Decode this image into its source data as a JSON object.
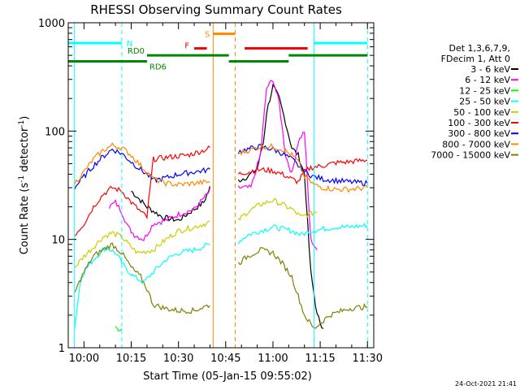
{
  "chart_data": {
    "type": "line",
    "title": "RHESSI Observing Summary Count Rates",
    "xlabel": "Start Time (05-Jan-15 09:55:02)",
    "ylabel": "Count Rate (s⁻¹ detector⁻¹)",
    "ylabel_parts": {
      "main": "Count Rate (s",
      "sup1": "-1",
      "mid": " detector",
      "sup2": "-1",
      "end": ")"
    },
    "yscale": "log",
    "ylim": [
      1,
      1000
    ],
    "xlim": [
      "09:55",
      "11:32"
    ],
    "x_ticks": [
      "10:00",
      "10:15",
      "10:30",
      "10:45",
      "11:00",
      "11:15",
      "11:30"
    ],
    "y_ticks": [
      "1",
      "10",
      "100",
      "1000"
    ],
    "legend_header": [
      "Det 1,3,6,7,9,",
      "FDecim 1, Att 0"
    ],
    "legend_placement": "right",
    "series": [
      {
        "name": "3 - 6 keV",
        "color": "#000000",
        "points": [
          [
            "10:15",
            28
          ],
          [
            "10:20",
            20
          ],
          [
            "10:25",
            16
          ],
          [
            "10:30",
            15
          ],
          [
            "10:35",
            19
          ],
          [
            "10:38",
            22
          ],
          [
            "10:40",
            30
          ],
          [
            "10:49",
            35
          ],
          [
            "10:52",
            38
          ],
          [
            "10:55",
            45
          ],
          [
            "10:57",
            80
          ],
          [
            "10:58",
            150
          ],
          [
            "11:00",
            260
          ],
          [
            "11:02",
            200
          ],
          [
            "11:04",
            120
          ],
          [
            "11:06",
            70
          ],
          [
            "11:08",
            60
          ],
          [
            "11:10",
            40
          ],
          [
            "11:12",
            5
          ],
          [
            "11:14",
            2
          ],
          [
            "11:16",
            1.5
          ]
        ]
      },
      {
        "name": "6 - 12 keV",
        "color": "#ff00ff",
        "points": [
          [
            "10:08",
            20
          ],
          [
            "10:10",
            22
          ],
          [
            "10:12",
            18
          ],
          [
            "10:14",
            13
          ],
          [
            "10:16",
            11
          ],
          [
            "10:19",
            10
          ],
          [
            "10:22",
            14
          ],
          [
            "10:26",
            15
          ],
          [
            "10:30",
            17
          ],
          [
            "10:35",
            19
          ],
          [
            "10:40",
            28
          ],
          [
            "10:49",
            30
          ],
          [
            "10:53",
            30
          ],
          [
            "10:56",
            60
          ],
          [
            "10:58",
            250
          ],
          [
            "11:00",
            300
          ],
          [
            "11:02",
            180
          ],
          [
            "11:04",
            60
          ],
          [
            "11:06",
            40
          ],
          [
            "11:08",
            80
          ],
          [
            "11:10",
            100
          ],
          [
            "11:12",
            10
          ],
          [
            "11:14",
            8
          ]
        ]
      },
      {
        "name": "12 - 25 keV",
        "color": "#00ff00",
        "points": [
          [
            "10:10",
            1.5
          ],
          [
            "10:12",
            1.5
          ]
        ]
      },
      {
        "name": "25 - 50 keV",
        "color": "#00ffff",
        "points": [
          [
            "09:57",
            1.5
          ],
          [
            "09:59",
            4.5
          ],
          [
            "10:01",
            5.5
          ],
          [
            "10:03",
            6.5
          ],
          [
            "10:05",
            7.5
          ],
          [
            "10:07",
            8.5
          ],
          [
            "10:10",
            7.5
          ],
          [
            "10:13",
            5.5
          ],
          [
            "10:16",
            4.5
          ],
          [
            "10:19",
            4.0
          ],
          [
            "10:22",
            5.0
          ],
          [
            "10:26",
            6.5
          ],
          [
            "10:30",
            7.5
          ],
          [
            "10:35",
            8.0
          ],
          [
            "10:40",
            9.0
          ],
          [
            "10:49",
            9.5
          ],
          [
            "10:52",
            11
          ],
          [
            "10:56",
            12
          ],
          [
            "11:00",
            13
          ],
          [
            "11:03",
            12.5
          ],
          [
            "11:06",
            12
          ],
          [
            "11:09",
            11
          ],
          [
            "11:12",
            12
          ],
          [
            "11:16",
            12.5
          ],
          [
            "11:20",
            13
          ],
          [
            "11:24",
            13
          ],
          [
            "11:30",
            13.5
          ]
        ]
      },
      {
        "name": "50 - 100 keV",
        "color": "#cccc00",
        "points": [
          [
            "09:57",
            5.5
          ],
          [
            "10:00",
            7.0
          ],
          [
            "10:03",
            8.5
          ],
          [
            "10:06",
            10.5
          ],
          [
            "10:09",
            11.5
          ],
          [
            "10:12",
            10.5
          ],
          [
            "10:15",
            8.5
          ],
          [
            "10:17",
            7.5
          ],
          [
            "10:22",
            8.0
          ],
          [
            "10:26",
            10
          ],
          [
            "10:30",
            12
          ],
          [
            "10:35",
            13
          ],
          [
            "10:40",
            14.5
          ],
          [
            "10:49",
            15
          ],
          [
            "10:52",
            18
          ],
          [
            "10:56",
            21
          ],
          [
            "11:00",
            23
          ],
          [
            "11:03",
            21
          ],
          [
            "11:06",
            19
          ],
          [
            "11:09",
            16
          ],
          [
            "11:11",
            17
          ],
          [
            "11:14",
            18
          ]
        ]
      },
      {
        "name": "100 - 300 keV",
        "color": "#ff0000",
        "points": [
          [
            "09:57",
            11
          ],
          [
            "10:00",
            14
          ],
          [
            "10:03",
            20
          ],
          [
            "10:06",
            26
          ],
          [
            "10:09",
            30
          ],
          [
            "10:12",
            28
          ],
          [
            "10:15",
            22
          ],
          [
            "10:18",
            18
          ],
          [
            "10:20",
            16
          ],
          [
            "10:22",
            55
          ],
          [
            "10:28",
            58
          ],
          [
            "10:33",
            60
          ],
          [
            "10:37",
            65
          ],
          [
            "10:40",
            70
          ],
          [
            "10:49",
            40
          ],
          [
            "10:52",
            42
          ],
          [
            "10:56",
            44
          ],
          [
            "11:00",
            43
          ],
          [
            "11:03",
            40
          ],
          [
            "11:06",
            36
          ],
          [
            "11:08",
            34
          ],
          [
            "11:10",
            42
          ],
          [
            "11:12",
            46
          ],
          [
            "11:16",
            48
          ],
          [
            "11:20",
            51
          ],
          [
            "11:24",
            52
          ],
          [
            "11:30",
            54
          ]
        ]
      },
      {
        "name": "300 - 800 keV",
        "color": "#0000ff",
        "points": [
          [
            "09:57",
            30
          ],
          [
            "10:00",
            38
          ],
          [
            "10:03",
            48
          ],
          [
            "10:06",
            58
          ],
          [
            "10:09",
            68
          ],
          [
            "10:12",
            62
          ],
          [
            "10:15",
            52
          ],
          [
            "10:18",
            44
          ],
          [
            "10:20",
            40
          ],
          [
            "10:22",
            35
          ],
          [
            "10:26",
            37
          ],
          [
            "10:30",
            40
          ],
          [
            "10:35",
            42
          ],
          [
            "10:40",
            44
          ],
          [
            "10:49",
            65
          ],
          [
            "10:52",
            68
          ],
          [
            "10:56",
            72
          ],
          [
            "11:00",
            68
          ],
          [
            "11:03",
            62
          ],
          [
            "11:06",
            55
          ],
          [
            "11:08",
            48
          ],
          [
            "11:10",
            42
          ],
          [
            "11:13",
            38
          ],
          [
            "11:16",
            36
          ],
          [
            "11:20",
            35
          ],
          [
            "11:24",
            34
          ],
          [
            "11:30",
            33
          ]
        ]
      },
      {
        "name": "800 - 7000 keV",
        "color": "#ff8800",
        "points": [
          [
            "09:57",
            33
          ],
          [
            "10:00",
            42
          ],
          [
            "10:03",
            55
          ],
          [
            "10:06",
            66
          ],
          [
            "10:09",
            74
          ],
          [
            "10:12",
            70
          ],
          [
            "10:15",
            60
          ],
          [
            "10:18",
            48
          ],
          [
            "10:20",
            42
          ],
          [
            "10:22",
            36
          ],
          [
            "10:26",
            33
          ],
          [
            "10:30",
            32
          ],
          [
            "10:35",
            33
          ],
          [
            "10:40",
            34
          ],
          [
            "10:49",
            62
          ],
          [
            "10:52",
            66
          ],
          [
            "10:56",
            72
          ],
          [
            "11:00",
            72
          ],
          [
            "11:03",
            68
          ],
          [
            "11:06",
            60
          ],
          [
            "11:08",
            52
          ],
          [
            "11:10",
            38
          ],
          [
            "11:13",
            32
          ],
          [
            "11:16",
            30
          ],
          [
            "11:20",
            29
          ],
          [
            "11:24",
            29
          ],
          [
            "11:30",
            30
          ]
        ]
      },
      {
        "name": "7000 - 15000 keV",
        "color": "#808000",
        "points": [
          [
            "09:57",
            3.2
          ],
          [
            "10:00",
            5.0
          ],
          [
            "10:03",
            7.0
          ],
          [
            "10:06",
            8.0
          ],
          [
            "10:09",
            9.0
          ],
          [
            "10:12",
            7.5
          ],
          [
            "10:15",
            5.5
          ],
          [
            "10:18",
            4.5
          ],
          [
            "10:20",
            3.5
          ],
          [
            "10:22",
            2.5
          ],
          [
            "10:26",
            2.3
          ],
          [
            "10:30",
            2.2
          ],
          [
            "10:35",
            2.2
          ],
          [
            "10:40",
            2.5
          ],
          [
            "10:49",
            6.0
          ],
          [
            "10:52",
            7.0
          ],
          [
            "10:56",
            8.0
          ],
          [
            "11:00",
            7.5
          ],
          [
            "11:03",
            6.0
          ],
          [
            "11:06",
            4.5
          ],
          [
            "11:08",
            3.0
          ],
          [
            "11:10",
            2.0
          ],
          [
            "11:13",
            1.5
          ],
          [
            "11:18",
            2.0
          ],
          [
            "11:24",
            2.3
          ],
          [
            "11:30",
            2.4
          ]
        ]
      }
    ],
    "gaps": [
      [
        "10:40",
        "10:49"
      ]
    ],
    "annotations": {
      "bars": [
        {
          "label": "N",
          "color": "#00ffff",
          "segments": [
            [
              "09:55",
              "10:12"
            ],
            [
              "11:13",
              "11:30"
            ]
          ],
          "y": 650
        },
        {
          "label": "S",
          "color": "#ff8800",
          "segments": [
            [
              "10:41",
              "10:48"
            ]
          ],
          "y": 790
        },
        {
          "label": "F",
          "color": "#ff0000",
          "segments": [
            [
              "10:35",
              "10:39"
            ],
            [
              "10:51",
              "11:11"
            ]
          ],
          "y": 580
        },
        {
          "label": "RD0",
          "color": "#008800",
          "segments": [
            [
              "10:20",
              "10:46"
            ],
            [
              "11:05",
              "11:30"
            ]
          ],
          "y": 500
        },
        {
          "label": "RD6",
          "color": "#008800",
          "segments": [
            [
              "09:55",
              "10:20"
            ],
            [
              "10:46",
              "11:05"
            ]
          ],
          "y": 440
        }
      ],
      "vlines": [
        {
          "time": "09:57",
          "color": "#00ffff",
          "style": "solid"
        },
        {
          "time": "10:12",
          "color": "#00ffff",
          "style": "dashed"
        },
        {
          "time": "10:41",
          "color": "#ff8800",
          "style": "solid"
        },
        {
          "time": "10:48",
          "color": "#ff8800",
          "style": "dashed"
        },
        {
          "time": "11:13",
          "color": "#00ffff",
          "style": "solid"
        },
        {
          "time": "11:30",
          "color": "#00ffff",
          "style": "dashed"
        }
      ]
    }
  },
  "timestamp": "24-Oct-2021 21:41",
  "colors": {
    "background": "#ffffff",
    "axes": "#000000"
  }
}
